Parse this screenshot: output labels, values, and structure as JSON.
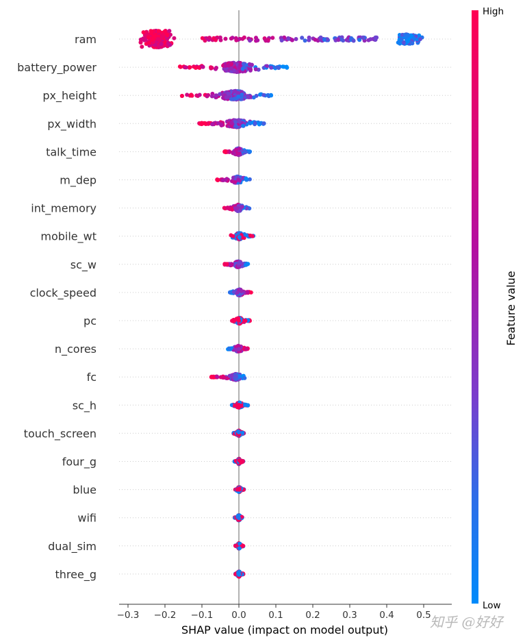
{
  "chart_data": {
    "type": "scatter",
    "subtype": "shap-beeswarm-summary",
    "title": "",
    "xlabel": "SHAP value (impact on model output)",
    "ylabel": "",
    "xlim": [
      -0.33,
      0.57
    ],
    "xticks": [
      -0.3,
      -0.2,
      -0.1,
      0.0,
      0.1,
      0.2,
      0.3,
      0.4,
      0.5
    ],
    "xtick_labels": [
      "−0.3",
      "−0.2",
      "−0.1",
      "0.0",
      "0.1",
      "0.2",
      "0.3",
      "0.4",
      "0.5"
    ],
    "grid": "dotted horizontal per feature",
    "zero_line": 0.0,
    "colorbar": {
      "label": "Feature value",
      "high_label": "High",
      "low_label": "Low",
      "high_color": "#ff0052",
      "mid_color": "#9b1fb0",
      "low_color": "#008bfb",
      "placement": "right"
    },
    "features": [
      {
        "name": "ram",
        "min": -0.29,
        "max": 0.53,
        "low_side": "right",
        "spread": 0.95,
        "density": [
          [
            -0.25,
            0.9
          ],
          [
            -0.21,
            1.0
          ],
          [
            -0.17,
            0.7
          ],
          [
            -0.12,
            0.35
          ],
          [
            0.0,
            0.2
          ],
          [
            0.2,
            0.2
          ],
          [
            0.4,
            0.4
          ],
          [
            0.47,
            0.8
          ],
          [
            0.5,
            0.4
          ]
        ]
      },
      {
        "name": "battery_power",
        "min": -0.16,
        "max": 0.13,
        "low_side": "right",
        "spread": 0.7
      },
      {
        "name": "px_height",
        "min": -0.16,
        "max": 0.09,
        "low_side": "right",
        "spread": 0.65
      },
      {
        "name": "px_width",
        "min": -0.11,
        "max": 0.07,
        "low_side": "right",
        "spread": 0.55
      },
      {
        "name": "talk_time",
        "min": -0.04,
        "max": 0.03,
        "low_side": "right",
        "spread": 0.5
      },
      {
        "name": "m_dep",
        "min": -0.06,
        "max": 0.03,
        "low_side": "right",
        "spread": 0.5
      },
      {
        "name": "int_memory",
        "min": -0.04,
        "max": 0.03,
        "low_side": "right",
        "spread": 0.5
      },
      {
        "name": "mobile_wt",
        "min": -0.03,
        "max": 0.04,
        "low_side": "mixed",
        "spread": 0.5
      },
      {
        "name": "sc_w",
        "min": -0.04,
        "max": 0.025,
        "low_side": "right",
        "spread": 0.45
      },
      {
        "name": "clock_speed",
        "min": -0.025,
        "max": 0.035,
        "low_side": "left",
        "spread": 0.45
      },
      {
        "name": "pc",
        "min": -0.02,
        "max": 0.03,
        "low_side": "mixed",
        "spread": 0.45
      },
      {
        "name": "n_cores",
        "min": -0.03,
        "max": 0.025,
        "low_side": "left",
        "spread": 0.45
      },
      {
        "name": "fc",
        "min": -0.075,
        "max": 0.02,
        "low_side": "right",
        "spread": 0.45
      },
      {
        "name": "sc_h",
        "min": -0.02,
        "max": 0.025,
        "low_side": "mixed",
        "spread": 0.4
      },
      {
        "name": "touch_screen",
        "min": -0.015,
        "max": 0.015,
        "low_side": "mixed",
        "spread": 0.4
      },
      {
        "name": "four_g",
        "min": -0.012,
        "max": 0.012,
        "low_side": "mixed",
        "spread": 0.4
      },
      {
        "name": "blue",
        "min": -0.01,
        "max": 0.014,
        "low_side": "mixed",
        "spread": 0.4
      },
      {
        "name": "wifi",
        "min": -0.012,
        "max": 0.012,
        "low_side": "mixed",
        "spread": 0.4
      },
      {
        "name": "dual_sim",
        "min": -0.01,
        "max": 0.012,
        "low_side": "mixed",
        "spread": 0.4
      },
      {
        "name": "three_g",
        "min": -0.01,
        "max": 0.012,
        "low_side": "mixed",
        "spread": 0.4
      }
    ]
  },
  "watermark": "知乎 @好好"
}
